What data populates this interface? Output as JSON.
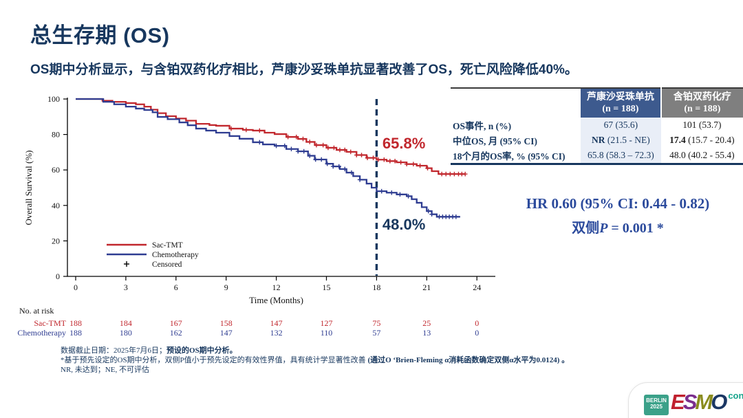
{
  "slide": {
    "title": "总生存期 (OS)",
    "subtitle": "OS期中分析显示，与含铂双药化疗相比，芦康沙妥珠单抗显著改善了OS，死亡风险降低40%。"
  },
  "colors": {
    "title_navy": "#17375E",
    "sac_tmt_red": "#C1272D",
    "chemo_blue": "#2E3C91",
    "hr_text_blue": "#2B4A9C",
    "table_header_blue": "#3D5A8E",
    "table_header_gray": "#7F7F7F",
    "table_col1_bg": "#E9EEF7",
    "esmo_teal": "#18A48C"
  },
  "chart_data": {
    "type": "line",
    "subtype": "kaplan-meier-step",
    "xlabel": "Time (Months)",
    "ylabel": "Overall Survival (%)",
    "xlim": [
      0,
      25
    ],
    "ylim": [
      0,
      100
    ],
    "xticks": [
      0,
      3,
      6,
      9,
      12,
      15,
      18,
      21,
      24
    ],
    "yticks": [
      0,
      20,
      40,
      60,
      80,
      100
    ],
    "grid": false,
    "legend_position": "lower-left",
    "censored_label": "Censored",
    "reference_line": {
      "x": 18,
      "style": "dashed",
      "color": "#17375E"
    },
    "annotations": [
      {
        "text": "65.8%",
        "x": 18.35,
        "y": 72.1,
        "color": "#C1272D"
      },
      {
        "text": "48.0%",
        "x": 18.35,
        "y": 26.4,
        "color": "#17375E"
      }
    ],
    "series": [
      {
        "name": "Sac-TMT",
        "color": "#C1272D",
        "points": [
          [
            0,
            100
          ],
          [
            1,
            100
          ],
          [
            1.6,
            99
          ],
          [
            2.2,
            98.4
          ],
          [
            3,
            97.7
          ],
          [
            3.6,
            97
          ],
          [
            4.1,
            95.7
          ],
          [
            4.5,
            94
          ],
          [
            4.9,
            92
          ],
          [
            5.4,
            90.3
          ],
          [
            6,
            89
          ],
          [
            6.6,
            87.8
          ],
          [
            7.2,
            86
          ],
          [
            8,
            85.3
          ],
          [
            8.4,
            84.9
          ],
          [
            9.2,
            83.3
          ],
          [
            10,
            82.6
          ],
          [
            10.6,
            82.2
          ],
          [
            11.3,
            81
          ],
          [
            11.9,
            80.2
          ],
          [
            12.6,
            78.6
          ],
          [
            13.3,
            77.5
          ],
          [
            13.8,
            75.8
          ],
          [
            14.3,
            74
          ],
          [
            15,
            72.5
          ],
          [
            15.6,
            71.3
          ],
          [
            16.2,
            70.2
          ],
          [
            16.8,
            68.4
          ],
          [
            17.4,
            66.8
          ],
          [
            18,
            65.8
          ],
          [
            18.6,
            65
          ],
          [
            19.2,
            64.3
          ],
          [
            19.8,
            63.3
          ],
          [
            20.4,
            62.4
          ],
          [
            21,
            61
          ],
          [
            21.3,
            59.3
          ],
          [
            21.7,
            57.7
          ],
          [
            23.3,
            57.7
          ]
        ],
        "censor_months": [
          9.3,
          10.2,
          11.0,
          12.7,
          13.2,
          13.6,
          14.0,
          14.4,
          14.8,
          15.1,
          15.45,
          15.8,
          16.1,
          16.45,
          16.8,
          17.1,
          17.45,
          17.8,
          18.1,
          18.45,
          18.8,
          19.1,
          19.45,
          19.8,
          20.2,
          20.6,
          21.05,
          21.9,
          22.15,
          22.4,
          22.65,
          22.9,
          23.1,
          23.3
        ]
      },
      {
        "name": "Chemotherapy",
        "color": "#2E3C91",
        "points": [
          [
            0,
            100
          ],
          [
            1,
            100
          ],
          [
            1.65,
            98.4
          ],
          [
            2.3,
            97
          ],
          [
            3,
            95.7
          ],
          [
            3.6,
            94.6
          ],
          [
            4.1,
            93.8
          ],
          [
            4.6,
            92.5
          ],
          [
            4.9,
            89.9
          ],
          [
            5.5,
            88.6
          ],
          [
            6.2,
            86.8
          ],
          [
            6.7,
            85.2
          ],
          [
            7.2,
            83.3
          ],
          [
            7.8,
            82.2
          ],
          [
            8.4,
            81
          ],
          [
            9.2,
            79.1
          ],
          [
            9.8,
            77.6
          ],
          [
            10.6,
            75.6
          ],
          [
            11.2,
            74.4
          ],
          [
            11.9,
            73.6
          ],
          [
            12.6,
            71.8
          ],
          [
            13.3,
            70.5
          ],
          [
            13.9,
            68
          ],
          [
            14.3,
            65.9
          ],
          [
            15,
            63.5
          ],
          [
            15.4,
            62
          ],
          [
            15.8,
            60.5
          ],
          [
            16.2,
            58.5
          ],
          [
            16.6,
            56.5
          ],
          [
            17,
            54.5
          ],
          [
            17.4,
            52.3
          ],
          [
            17.7,
            50
          ],
          [
            18,
            48
          ],
          [
            18.6,
            47.2
          ],
          [
            19.2,
            46.2
          ],
          [
            19.8,
            45.2
          ],
          [
            20.1,
            43.5
          ],
          [
            20.4,
            41.5
          ],
          [
            20.7,
            39
          ],
          [
            21,
            36.8
          ],
          [
            21.3,
            35
          ],
          [
            21.6,
            33.6
          ],
          [
            23,
            33.6
          ]
        ],
        "censor_months": [
          11.0,
          12.0,
          12.5,
          12.9,
          13.3,
          13.65,
          14.0,
          14.35,
          14.7,
          15.05,
          15.4,
          15.75,
          16.1,
          16.5,
          17.0,
          18.3,
          18.9,
          19.4,
          19.9,
          21.1,
          21.3,
          21.75,
          21.95,
          22.15,
          22.35,
          22.55,
          22.75
        ]
      }
    ],
    "no_at_risk": {
      "label": "No. at risk",
      "timepoints": [
        0,
        3,
        6,
        9,
        12,
        15,
        18,
        21,
        24
      ],
      "rows": [
        {
          "name": "Sac-TMT",
          "color": "#C1272D",
          "values": [
            188,
            184,
            167,
            158,
            147,
            127,
            75,
            25,
            0
          ]
        },
        {
          "name": "Chemotherapy",
          "color": "#2E3C91",
          "values": [
            188,
            180,
            162,
            147,
            132,
            110,
            57,
            13,
            0
          ]
        }
      ]
    }
  },
  "table": {
    "col1_header": {
      "name": "芦康沙妥珠单抗",
      "n": "(n = 188)"
    },
    "col2_header": {
      "name": "含铂双药化疗",
      "n": "(n = 188)"
    },
    "rows": [
      {
        "label": "OS事件, n (%)",
        "v1_strong": "",
        "v1_rest": "67 (35.6)",
        "v2_strong": "",
        "v2_rest": "101 (53.7)"
      },
      {
        "label": "中位OS, 月 (95% CI)",
        "v1_strong": "NR",
        "v1_rest": " (21.5 - NE)",
        "v2_strong": "17.4",
        "v2_rest": " (15.7 - 20.4)"
      },
      {
        "label": "18个月的OS率, % (95% CI)",
        "v1_strong": "",
        "v1_rest": "65.8 (58.3 – 72.3)",
        "v2_strong": "",
        "v2_rest": "48.0 (40.2 - 55.4)"
      }
    ]
  },
  "stats": {
    "hr_line": "HR 0.60 (95% CI: 0.44 - 0.82)",
    "p_prefix": "双侧",
    "p_symbol": "P",
    "p_rest": " = 0.001 *"
  },
  "footnotes": {
    "line1_normal": "数据截止日期：2025年7月6日；",
    "line1_bold": "预设的OS期中分析。",
    "line2_normal": "*基于预先设定的OS期中分析，双侧P值小于预先设定的有效性界值，具有统计学显著性改善 ",
    "line2_bold": "(通过O ‘Brien-Fleming α消耗函数确定双侧α水平为0.0124) 。",
    "line3": "NR, 未达到；NE, 不可评估"
  },
  "logo": {
    "venue": "BERLIN",
    "year": "2025",
    "letters": [
      {
        "char": "E",
        "color": "#C0202E"
      },
      {
        "char": "S",
        "color": "#7B2E8D"
      },
      {
        "char": "M",
        "color": "#8A8C1E"
      },
      {
        "char": "O",
        "color": "#1B3764"
      }
    ],
    "congress": "congress"
  }
}
